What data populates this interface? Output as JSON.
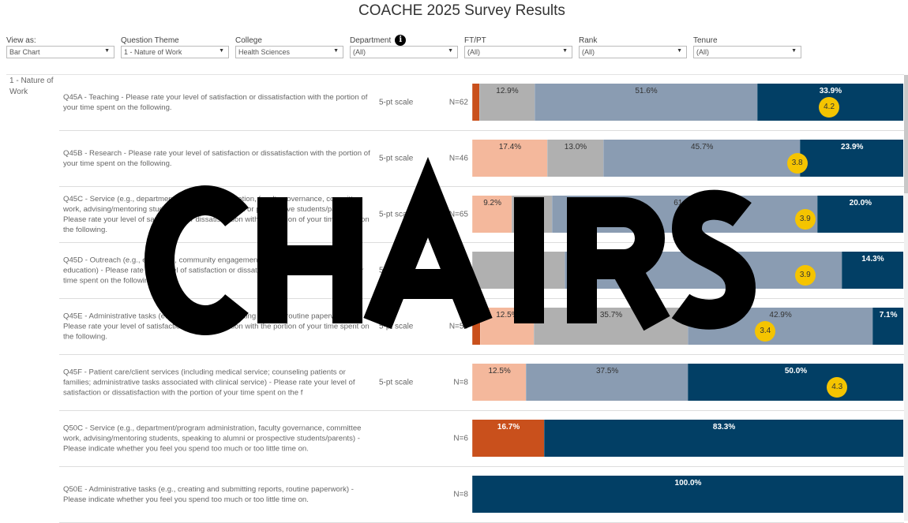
{
  "title": "COACHE 2025 Survey Results",
  "filters": [
    {
      "label": "View as:",
      "value": "Bar Chart"
    },
    {
      "label": "Question Theme",
      "value": "1 - Nature of Work"
    },
    {
      "label": "College",
      "value": "Health Sciences"
    },
    {
      "label": "Department",
      "value": "(All)",
      "info": true
    },
    {
      "label": "FT/PT",
      "value": "(All)"
    },
    {
      "label": "Rank",
      "value": "(All)"
    },
    {
      "label": "Tenure",
      "value": "(All)"
    }
  ],
  "theme_label": "1 - Nature of Work",
  "watermark": "CHAIRS",
  "colors": {
    "dorange": "#c9501c",
    "peach": "#f4b89c",
    "gray": "#b0b0b0",
    "blue": "#8a9cb2",
    "dark": "#023f65",
    "mean": "#f5c400"
  },
  "rows": [
    {
      "question": "Q45A - Teaching - Please rate your level of satisfaction or dissatisfaction with the portion of your time spent on the following.",
      "scale": "5-pt scale",
      "n": "N=62",
      "mean": "4.2",
      "segments": [
        {
          "c": "dorange",
          "v": 1.6,
          "label": ""
        },
        {
          "c": "gray",
          "v": 12.9,
          "label": "12.9%"
        },
        {
          "c": "blue",
          "v": 51.6,
          "label": "51.6%"
        },
        {
          "c": "dark",
          "v": 33.9,
          "label": "33.9%"
        }
      ]
    },
    {
      "question": "Q45B - Research - Please rate your level of satisfaction or dissatisfaction with the portion of your time spent on the following.",
      "scale": "5-pt scale",
      "n": "N=46",
      "mean": "3.8",
      "segments": [
        {
          "c": "peach",
          "v": 17.4,
          "label": "17.4%"
        },
        {
          "c": "gray",
          "v": 13.0,
          "label": "13.0%"
        },
        {
          "c": "blue",
          "v": 45.7,
          "label": "45.7%"
        },
        {
          "c": "dark",
          "v": 23.9,
          "label": "23.9%"
        }
      ]
    },
    {
      "question": "Q45C - Service (e.g., department/program administration, faculty governance, committee work, advising/mentoring students, speaking to alumni or prospective students/parents) - Please rate your level of satisfaction or dissatisfaction with the portion of your time spent on the following.",
      "scale": "5-pt scale",
      "n": "N=65",
      "mean": "3.9",
      "segments": [
        {
          "c": "peach",
          "v": 9.2,
          "label": "9.2%"
        },
        {
          "c": "gray",
          "v": 9.3,
          "label": ""
        },
        {
          "c": "blue",
          "v": 61.5,
          "label": "61.5%"
        },
        {
          "c": "dark",
          "v": 20.0,
          "label": "20.0%"
        }
      ]
    },
    {
      "question": "Q45D - Outreach (e.g., extension, community engagement, economic development, K-12 education) - Please rate your level of satisfaction or dissatisfaction with the portion of your time spent on the following.",
      "scale": "5-pt scale",
      "n": "N=14",
      "mean": "3.9",
      "segments": [
        {
          "c": "gray",
          "v": 21.4,
          "label": ""
        },
        {
          "c": "blue",
          "v": 64.3,
          "label": ""
        },
        {
          "c": "dark",
          "v": 14.3,
          "label": "14.3%"
        }
      ]
    },
    {
      "question": "Q45E - Administrative tasks (e.g., creating and submitting reports, routine paperwork) - Please rate your level of satisfaction or dissatisfaction with the portion of your time spent on the following.",
      "scale": "5-pt scale",
      "n": "N=56",
      "mean": "3.4",
      "segments": [
        {
          "c": "dorange",
          "v": 1.8,
          "label": ""
        },
        {
          "c": "peach",
          "v": 12.5,
          "label": "12.5%"
        },
        {
          "c": "gray",
          "v": 35.7,
          "label": "35.7%"
        },
        {
          "c": "blue",
          "v": 42.9,
          "label": "42.9%"
        },
        {
          "c": "dark",
          "v": 7.1,
          "label": "7.1%"
        }
      ]
    },
    {
      "question": "Q45F - Patient care/client services (including medical service; counseling patients or families; administrative tasks associated with clinical service) - Please rate your level of satisfaction or dissatisfaction with the portion of your time spent on the f",
      "scale": "5-pt scale",
      "n": "N=8",
      "mean": "4.3",
      "segments": [
        {
          "c": "peach",
          "v": 12.5,
          "label": "12.5%"
        },
        {
          "c": "blue",
          "v": 37.5,
          "label": "37.5%"
        },
        {
          "c": "dark",
          "v": 50.0,
          "label": "50.0%"
        }
      ]
    },
    {
      "question": "Q50C - Service (e.g., department/program administration, faculty governance, committee work, advising/mentoring students, speaking to alumni or prospective students/parents) - Please indicate whether you feel you spend too much or too little time on.",
      "scale": "",
      "n": "N=6",
      "mean": null,
      "segments": [
        {
          "c": "dorange",
          "v": 16.7,
          "label": "16.7%"
        },
        {
          "c": "dark",
          "v": 83.3,
          "label": "83.3%"
        }
      ]
    },
    {
      "question": "Q50E - Administrative tasks (e.g., creating and submitting reports, routine paperwork) - Please indicate whether you feel you spend too much or too little time on.",
      "scale": "",
      "n": "N=8",
      "mean": null,
      "segments": [
        {
          "c": "dark",
          "v": 100.0,
          "label": "100.0%"
        }
      ]
    }
  ]
}
